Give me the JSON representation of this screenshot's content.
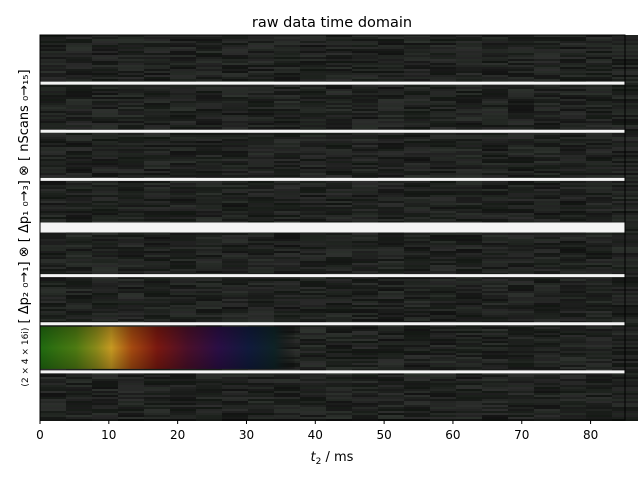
{
  "chart_data": {
    "type": "heatmap",
    "title": "raw data time domain",
    "xlabel_main": "t",
    "xlabel_sub": "2",
    "xlabel_unit": " / ms",
    "ylabel_prefix": "(2 × 4 × 16i)",
    "ylabel_main": "[ Δp₂ ₀→₁] ⊗ [ Δp₁ ₀→₃] ⊗ [ nScans ₀→₁₅]",
    "xlim": [
      0,
      85
    ],
    "x_ticks": [
      0,
      10,
      20,
      30,
      40,
      50,
      60,
      70,
      80
    ],
    "blocks": 8,
    "separator_lines_after_block": [
      1,
      2,
      3,
      4,
      5,
      6,
      7
    ],
    "signal": {
      "block_index_from_top": 6,
      "x_range_ms": [
        0,
        37
      ],
      "colormap": "phase-hue (green → yellow → red → purple → blue)"
    },
    "background": "noise (dark gray)",
    "grid": false
  }
}
